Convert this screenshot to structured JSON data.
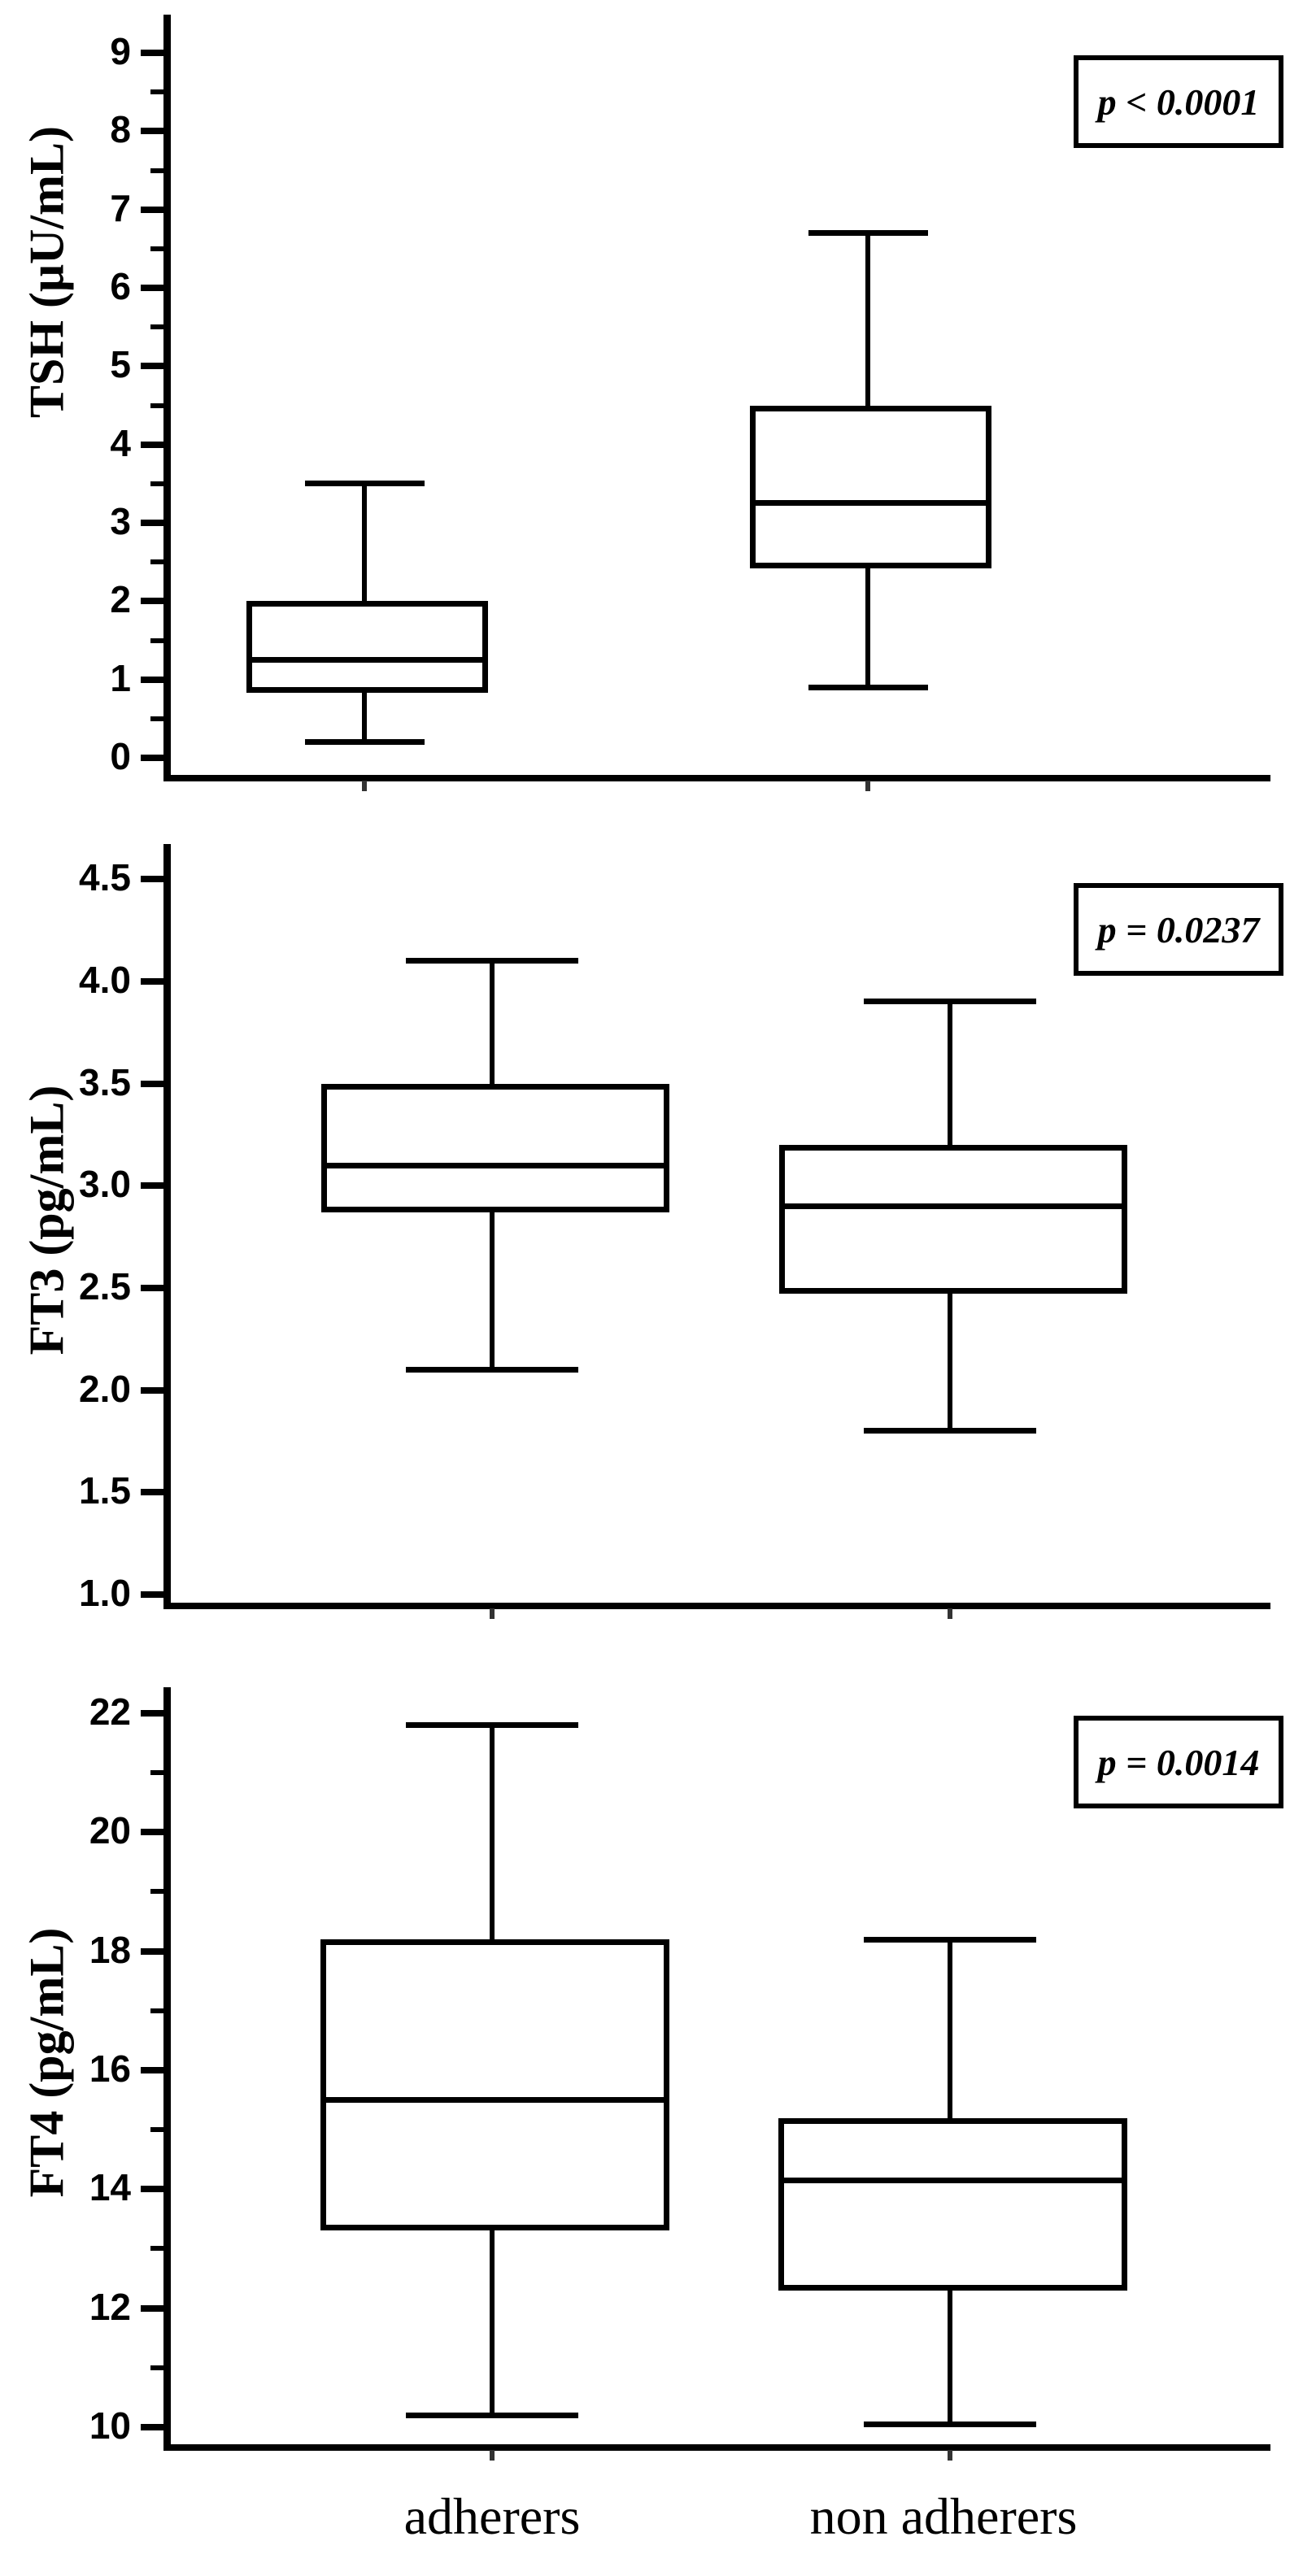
{
  "figure": {
    "background": "#ffffff",
    "ink_color": "#000000",
    "categories": [
      "adherers",
      "non adherers"
    ]
  },
  "chart_data": [
    {
      "type": "box",
      "ylabel": "TSH (μU/mL)",
      "p_label": "p < 0.0001",
      "ylim": [
        0,
        9
      ],
      "y_ticks": [
        0,
        1,
        2,
        3,
        4,
        5,
        6,
        7,
        8,
        9
      ],
      "y_tick_labels": [
        "0",
        "1",
        "2",
        "3",
        "4",
        "5",
        "6",
        "7",
        "8",
        "9"
      ],
      "y_minor_ticks": [
        0.5,
        1.5,
        2.5,
        3.5,
        4.5,
        5.5,
        6.5,
        7.5,
        8.5
      ],
      "series": [
        {
          "name": "adherers",
          "min": 0.2,
          "q1": 0.9,
          "median": 1.25,
          "q3": 2.0,
          "max": 3.5
        },
        {
          "name": "non adherers",
          "min": 0.9,
          "q1": 2.5,
          "median": 3.25,
          "q3": 4.5,
          "max": 6.7
        }
      ]
    },
    {
      "type": "box",
      "ylabel": "FT3 (pg/mL)",
      "p_label": "p = 0.0237",
      "ylim": [
        1.0,
        4.5
      ],
      "y_ticks": [
        1.0,
        1.5,
        2.0,
        2.5,
        3.0,
        3.5,
        4.0,
        4.5
      ],
      "y_tick_labels": [
        "1.0",
        "1.5",
        "2.0",
        "2.5",
        "3.0",
        "3.5",
        "4.0",
        "4.5"
      ],
      "y_minor_ticks": [],
      "series": [
        {
          "name": "adherers",
          "min": 2.1,
          "q1": 2.9,
          "median": 3.1,
          "q3": 3.5,
          "max": 4.1
        },
        {
          "name": "non adherers",
          "min": 1.8,
          "q1": 2.5,
          "median": 2.9,
          "q3": 3.2,
          "max": 3.9
        }
      ]
    },
    {
      "type": "box",
      "ylabel": "FT4 (pg/mL)",
      "p_label": "p = 0.0014",
      "ylim": [
        10,
        22
      ],
      "y_ticks": [
        10,
        12,
        14,
        16,
        18,
        20,
        22
      ],
      "y_tick_labels": [
        "10",
        "12",
        "14",
        "16",
        "18",
        "20",
        "22"
      ],
      "y_minor_ticks": [
        11,
        13,
        15,
        17,
        19,
        21
      ],
      "series": [
        {
          "name": "adherers",
          "min": 10.2,
          "q1": 13.4,
          "median": 15.5,
          "q3": 18.2,
          "max": 21.8
        },
        {
          "name": "non adherers",
          "min": 10.05,
          "q1": 12.4,
          "median": 14.15,
          "q3": 15.2,
          "max": 18.2
        }
      ]
    }
  ]
}
